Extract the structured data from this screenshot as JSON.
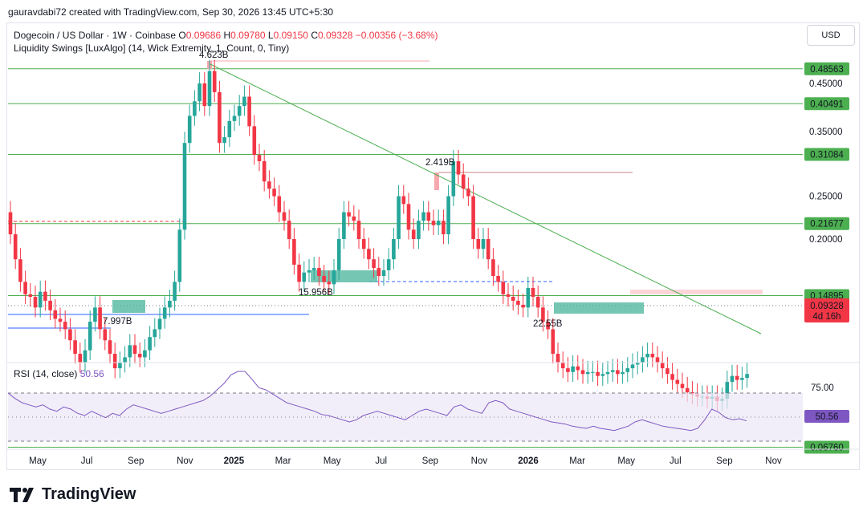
{
  "header": {
    "text": "gauravdabi72 created with TradingView.com, Sep 30, 2026 13:45 UTC+5:30"
  },
  "legend": {
    "symbol": "Dogecoin / US Dollar · 1W · Coinbase",
    "o_label": "O",
    "o": "0.09686",
    "h_label": "H",
    "h": "0.09780",
    "l_label": "L",
    "l": "0.09150",
    "c_label": "C",
    "c": "0.09328",
    "change": "−0.00356 (−3.68%)",
    "indicator": "Liquidity Swings [LuxAlgo] (14, Wick Extremity, 1, Count, 0, Tiny)"
  },
  "currency_button": "USD",
  "rsi_legend": {
    "label": "RSI (14, close)",
    "value": "50.56"
  },
  "logo": {
    "text": "TradingView"
  },
  "colors": {
    "up": "#26a69a",
    "down": "#f23645",
    "level": "#4caf50",
    "rsi": "#7e57c2",
    "zone": "#52b9a1"
  },
  "chart_data": {
    "type": "candlestick",
    "y_axis_ticks": [
      "0.45000",
      "0.35000",
      "0.25000",
      "0.20000"
    ],
    "x_axis_ticks": [
      {
        "label": "May",
        "year": false
      },
      {
        "label": "Jul",
        "year": false
      },
      {
        "label": "Sep",
        "year": false
      },
      {
        "label": "Nov",
        "year": false
      },
      {
        "label": "2025",
        "year": true
      },
      {
        "label": "Mar",
        "year": false
      },
      {
        "label": "May",
        "year": false
      },
      {
        "label": "Jul",
        "year": false
      },
      {
        "label": "Sep",
        "year": false
      },
      {
        "label": "Nov",
        "year": false
      },
      {
        "label": "2026",
        "year": true
      },
      {
        "label": "Mar",
        "year": false
      },
      {
        "label": "May",
        "year": false
      },
      {
        "label": "Jul",
        "year": false
      },
      {
        "label": "Sep",
        "year": false
      },
      {
        "label": "Nov",
        "year": false
      }
    ],
    "levels": [
      "0.48563",
      "0.40491",
      "0.31084",
      "0.21677",
      "0.14895",
      "0.06760"
    ],
    "current_price": {
      "value": "0.09328",
      "countdown": "4d 16h"
    },
    "annotations": [
      "2.419B",
      "15.956B",
      "7.997B",
      "22.55B",
      "4.623B"
    ],
    "rsi": {
      "upper": "75.00",
      "current": "50.56"
    }
  }
}
